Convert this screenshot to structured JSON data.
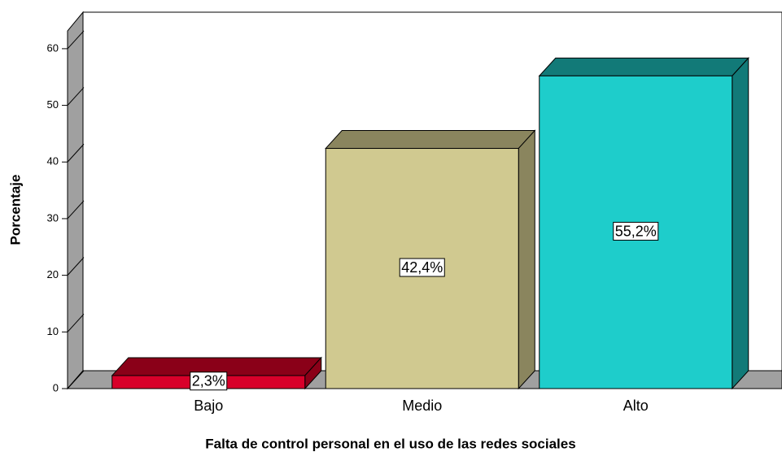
{
  "chart_data": {
    "type": "bar3d",
    "xlabel": "Falta de control personal en el uso de las redes sociales",
    "ylabel": "Porcentaje",
    "categories": [
      "Bajo",
      "Medio",
      "Alto"
    ],
    "values": [
      2.3,
      42.4,
      55.2
    ],
    "value_labels": [
      "2,3%",
      "42,4%",
      "55,2%"
    ],
    "colors": [
      "#d8002a",
      "#d0c990",
      "#1ecdcb"
    ],
    "side_colors": [
      "#8a0018",
      "#8a855e",
      "#127a78"
    ],
    "ylim": [
      0,
      63
    ],
    "yticks": [
      0,
      10,
      20,
      30,
      40,
      50,
      60
    ],
    "grid": true
  }
}
